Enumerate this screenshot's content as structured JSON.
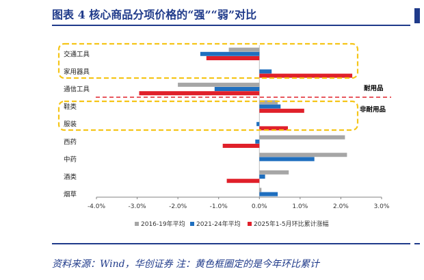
{
  "figure": {
    "title": "图表 4   核心商品分项价格的“强”“弱”对比",
    "source": "资料来源：Wind，华创证券  注：黄色框圈定的是今年环比累计"
  },
  "chart_data": {
    "type": "bar",
    "orientation": "horizontal",
    "categories": [
      "交通工具",
      "家用器具",
      "通信工具",
      "鞋类",
      "服装",
      "西药",
      "中药",
      "酒类",
      "烟草"
    ],
    "series": [
      {
        "name": "2016-19年平均",
        "color": "#a6a6a6",
        "values": [
          -0.75,
          0.0,
          -2.0,
          0.45,
          0.0,
          2.1,
          2.15,
          0.72,
          0.05
        ]
      },
      {
        "name": "2021-24年平均",
        "color": "#1f6fbf",
        "values": [
          -1.45,
          0.3,
          -1.1,
          0.52,
          -0.07,
          -0.1,
          1.35,
          0.14,
          0.45
        ]
      },
      {
        "name": "2025年1-5月环比累计涨幅",
        "color": "#e0202a",
        "values": [
          -1.3,
          2.28,
          -2.95,
          1.1,
          0.7,
          -0.9,
          0.0,
          -0.8,
          0.0
        ]
      }
    ],
    "xlim": [
      -4.0,
      3.0
    ],
    "xticks": [
      "-4.0%",
      "-3.0%",
      "-2.0%",
      "-1.0%",
      "0.0%",
      "1.0%",
      "2.0%",
      "3.0%"
    ],
    "annotations": {
      "durable": "耐用品",
      "nondurable": "非耐用品"
    },
    "highlight_color": "#f5c518",
    "divider_color": "#e0202a",
    "legend_position": "bottom"
  }
}
